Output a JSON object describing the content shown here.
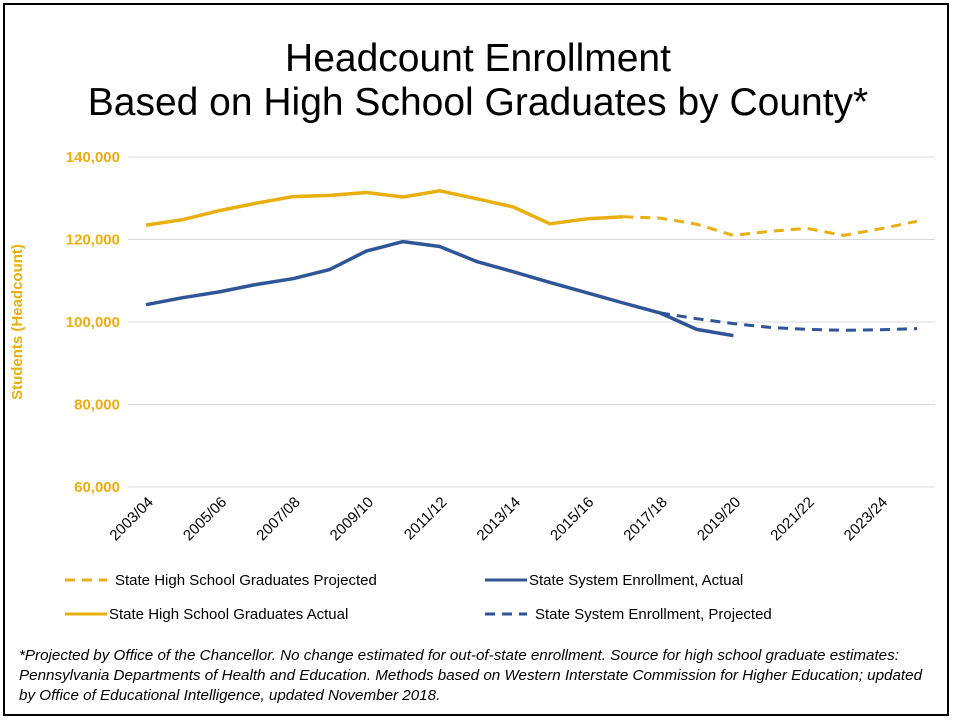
{
  "chart_data": {
    "type": "line",
    "title": [
      "Headcount Enrollment",
      "Based on High School Graduates by County*"
    ],
    "ylabel": "Students (Headcount)",
    "xlabel": "",
    "ylim": [
      60000,
      140000
    ],
    "y_ticks": [
      60000,
      80000,
      100000,
      120000,
      140000
    ],
    "y_tick_labels": [
      "60,000",
      "80,000",
      "100,000",
      "120,000",
      "140,000"
    ],
    "grid": true,
    "legend_position": "bottom",
    "x": [
      "2003/04",
      "2004/05",
      "2005/06",
      "2006/07",
      "2007/08",
      "2008/09",
      "2009/10",
      "2010/11",
      "2011/12",
      "2012/13",
      "2013/14",
      "2014/15",
      "2015/16",
      "2016/17",
      "2017/18",
      "2018/19",
      "2019/20",
      "2020/21",
      "2021/22",
      "2022/23",
      "2023/24",
      "2024/25"
    ],
    "x_tick_labels": [
      "2003/04",
      "2005/06",
      "2007/08",
      "2009/10",
      "2011/12",
      "2013/14",
      "2015/16",
      "2017/18",
      "2019/20",
      "2021/22",
      "2023/24"
    ],
    "series": [
      {
        "name": "State High School Graduates Projected",
        "color": "#E8AF0E",
        "dash": true,
        "values": [
          null,
          null,
          null,
          null,
          null,
          null,
          null,
          null,
          null,
          null,
          null,
          null,
          null,
          125500,
          125200,
          123700,
          121000,
          122000,
          122700,
          121000,
          122600,
          124400
        ]
      },
      {
        "name": "State System Enrollment, Actual",
        "color": "#2F5597",
        "dash": false,
        "values": [
          104200,
          105900,
          107300,
          109100,
          110500,
          112700,
          117200,
          119500,
          118300,
          114700,
          112200,
          109600,
          107100,
          104600,
          102200,
          98200,
          96700,
          null,
          null,
          null,
          null,
          null
        ]
      },
      {
        "name": "State High School Graduates Actual",
        "color": "#E8AF0E",
        "dash": false,
        "values": [
          123500,
          124800,
          127000,
          128800,
          130400,
          130700,
          131400,
          130300,
          131800,
          129900,
          127900,
          123800,
          125000,
          125500,
          null,
          null,
          null,
          null,
          null,
          null,
          null,
          null
        ]
      },
      {
        "name": "State System Enrollment, Projected",
        "color": "#2F5597",
        "dash": true,
        "values": [
          null,
          null,
          null,
          null,
          null,
          null,
          null,
          null,
          null,
          null,
          null,
          null,
          null,
          null,
          102200,
          100800,
          99600,
          98700,
          98200,
          98000,
          98100,
          98400
        ]
      }
    ],
    "axis_color": "#E8AF0E"
  },
  "footnote": "*Projected by Office of the Chancellor. No change estimated for out-of-state enrollment. Source for high school graduate estimates: Pennsylvania Departments of Health and Education. Methods based on Western Interstate Commission for Higher Education; updated by Office of Educational Intelligence, updated November 2018."
}
